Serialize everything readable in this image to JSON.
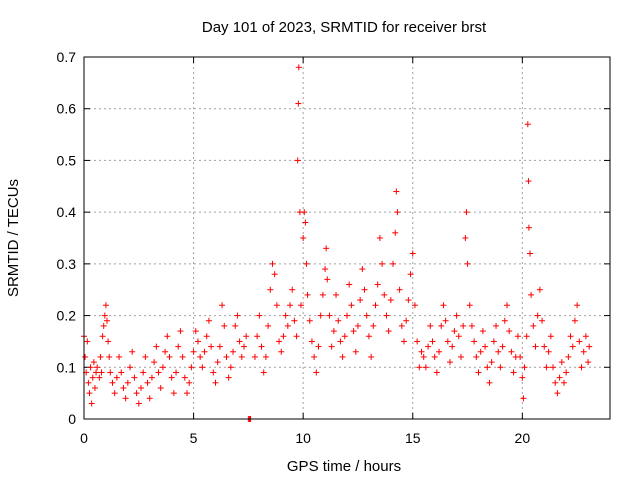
{
  "chart_data": {
    "type": "scatter",
    "title": "Day 101 of 2023, SRMTID for receiver brst",
    "xlabel": "GPS time / hours",
    "ylabel": "SRMTID / TECUs",
    "xlim": [
      0,
      24
    ],
    "ylim": [
      0,
      0.7
    ],
    "x_ticks": [
      0,
      5,
      10,
      15,
      20
    ],
    "y_ticks": [
      0,
      0.1,
      0.2,
      0.3,
      0.4,
      0.5,
      0.6,
      0.7
    ],
    "x_tick_labels": [
      "0",
      "5",
      "10",
      "15",
      "20"
    ],
    "y_tick_labels": [
      "0",
      "0.1",
      "0.2",
      "0.3",
      "0.4",
      "0.5",
      "0.6",
      "0.7"
    ],
    "grid": true,
    "marker": "+",
    "series_color": "#ff0000",
    "series": [
      {
        "name": "SRMTID",
        "points": [
          [
            0.0,
            0.16
          ],
          [
            0.05,
            0.12
          ],
          [
            0.1,
            0.09
          ],
          [
            0.15,
            0.15
          ],
          [
            0.2,
            0.07
          ],
          [
            0.25,
            0.05
          ],
          [
            0.3,
            0.1
          ],
          [
            0.35,
            0.03
          ],
          [
            0.4,
            0.08
          ],
          [
            0.45,
            0.11
          ],
          [
            0.5,
            0.06
          ],
          [
            0.55,
            0.09
          ],
          [
            0.6,
            0.1
          ],
          [
            0.7,
            0.08
          ],
          [
            0.75,
            0.12
          ],
          [
            0.8,
            0.09
          ],
          [
            0.85,
            0.16
          ],
          [
            0.9,
            0.18
          ],
          [
            0.95,
            0.2
          ],
          [
            1.0,
            0.22
          ],
          [
            1.05,
            0.19
          ],
          [
            1.1,
            0.15
          ],
          [
            1.15,
            0.12
          ],
          [
            1.2,
            0.09
          ],
          [
            1.3,
            0.07
          ],
          [
            1.4,
            0.05
          ],
          [
            1.5,
            0.08
          ],
          [
            1.6,
            0.12
          ],
          [
            1.7,
            0.09
          ],
          [
            1.8,
            0.06
          ],
          [
            1.9,
            0.04
          ],
          [
            2.0,
            0.07
          ],
          [
            2.1,
            0.1
          ],
          [
            2.2,
            0.13
          ],
          [
            2.3,
            0.08
          ],
          [
            2.4,
            0.05
          ],
          [
            2.5,
            0.03
          ],
          [
            2.6,
            0.06
          ],
          [
            2.7,
            0.09
          ],
          [
            2.8,
            0.12
          ],
          [
            2.9,
            0.07
          ],
          [
            3.0,
            0.04
          ],
          [
            3.1,
            0.08
          ],
          [
            3.2,
            0.11
          ],
          [
            3.3,
            0.14
          ],
          [
            3.4,
            0.09
          ],
          [
            3.5,
            0.06
          ],
          [
            3.6,
            0.1
          ],
          [
            3.7,
            0.13
          ],
          [
            3.8,
            0.16
          ],
          [
            3.9,
            0.12
          ],
          [
            4.0,
            0.08
          ],
          [
            4.1,
            0.05
          ],
          [
            4.2,
            0.09
          ],
          [
            4.3,
            0.14
          ],
          [
            4.4,
            0.17
          ],
          [
            4.5,
            0.12
          ],
          [
            4.6,
            0.08
          ],
          [
            4.7,
            0.05
          ],
          [
            4.8,
            0.07
          ],
          [
            4.9,
            0.1
          ],
          [
            5.0,
            0.13
          ],
          [
            5.1,
            0.17
          ],
          [
            5.2,
            0.15
          ],
          [
            5.3,
            0.12
          ],
          [
            5.4,
            0.1
          ],
          [
            5.5,
            0.13
          ],
          [
            5.6,
            0.16
          ],
          [
            5.7,
            0.19
          ],
          [
            5.8,
            0.14
          ],
          [
            5.9,
            0.09
          ],
          [
            6.0,
            0.07
          ],
          [
            6.1,
            0.11
          ],
          [
            6.2,
            0.14
          ],
          [
            6.3,
            0.22
          ],
          [
            6.4,
            0.18
          ],
          [
            6.5,
            0.12
          ],
          [
            6.6,
            0.08
          ],
          [
            6.7,
            0.1
          ],
          [
            6.8,
            0.13
          ],
          [
            6.9,
            0.18
          ],
          [
            7.0,
            0.2
          ],
          [
            7.1,
            0.15
          ],
          [
            7.2,
            0.12
          ],
          [
            7.3,
            0.14
          ],
          [
            7.4,
            0.16
          ],
          [
            7.5,
            0.0
          ],
          [
            7.55,
            0.0
          ],
          [
            7.6,
            0.0
          ],
          [
            7.8,
            0.12
          ],
          [
            7.9,
            0.16
          ],
          [
            8.0,
            0.2
          ],
          [
            8.1,
            0.14
          ],
          [
            8.2,
            0.09
          ],
          [
            8.3,
            0.12
          ],
          [
            8.4,
            0.18
          ],
          [
            8.5,
            0.25
          ],
          [
            8.6,
            0.3
          ],
          [
            8.7,
            0.28
          ],
          [
            8.8,
            0.22
          ],
          [
            8.9,
            0.15
          ],
          [
            9.0,
            0.13
          ],
          [
            9.1,
            0.16
          ],
          [
            9.2,
            0.2
          ],
          [
            9.3,
            0.18
          ],
          [
            9.4,
            0.22
          ],
          [
            9.5,
            0.25
          ],
          [
            9.6,
            0.19
          ],
          [
            9.7,
            0.16
          ],
          [
            9.75,
            0.5
          ],
          [
            9.78,
            0.61
          ],
          [
            9.8,
            0.68
          ],
          [
            9.85,
            0.4
          ],
          [
            9.9,
            0.22
          ],
          [
            10.0,
            0.35
          ],
          [
            10.05,
            0.4
          ],
          [
            10.1,
            0.38
          ],
          [
            10.15,
            0.3
          ],
          [
            10.2,
            0.24
          ],
          [
            10.3,
            0.19
          ],
          [
            10.4,
            0.15
          ],
          [
            10.5,
            0.12
          ],
          [
            10.6,
            0.09
          ],
          [
            10.7,
            0.14
          ],
          [
            10.8,
            0.2
          ],
          [
            10.9,
            0.24
          ],
          [
            11.0,
            0.29
          ],
          [
            11.05,
            0.33
          ],
          [
            11.1,
            0.27
          ],
          [
            11.2,
            0.2
          ],
          [
            11.3,
            0.14
          ],
          [
            11.4,
            0.17
          ],
          [
            11.5,
            0.24
          ],
          [
            11.6,
            0.19
          ],
          [
            11.7,
            0.15
          ],
          [
            11.8,
            0.12
          ],
          [
            11.9,
            0.16
          ],
          [
            12.0,
            0.2
          ],
          [
            12.1,
            0.26
          ],
          [
            12.2,
            0.22
          ],
          [
            12.3,
            0.17
          ],
          [
            12.4,
            0.13
          ],
          [
            12.5,
            0.18
          ],
          [
            12.6,
            0.23
          ],
          [
            12.7,
            0.29
          ],
          [
            12.8,
            0.25
          ],
          [
            12.9,
            0.2
          ],
          [
            13.0,
            0.16
          ],
          [
            13.1,
            0.12
          ],
          [
            13.2,
            0.18
          ],
          [
            13.3,
            0.22
          ],
          [
            13.4,
            0.26
          ],
          [
            13.5,
            0.35
          ],
          [
            13.6,
            0.3
          ],
          [
            13.7,
            0.24
          ],
          [
            13.8,
            0.2
          ],
          [
            13.9,
            0.17
          ],
          [
            14.0,
            0.23
          ],
          [
            14.1,
            0.3
          ],
          [
            14.2,
            0.36
          ],
          [
            14.25,
            0.44
          ],
          [
            14.3,
            0.4
          ],
          [
            14.4,
            0.25
          ],
          [
            14.5,
            0.18
          ],
          [
            14.6,
            0.15
          ],
          [
            14.7,
            0.19
          ],
          [
            14.8,
            0.23
          ],
          [
            14.9,
            0.28
          ],
          [
            15.0,
            0.32
          ],
          [
            15.1,
            0.22
          ],
          [
            15.2,
            0.15
          ],
          [
            15.3,
            0.1
          ],
          [
            15.4,
            0.13
          ],
          [
            15.5,
            0.12
          ],
          [
            15.6,
            0.1
          ],
          [
            15.7,
            0.14
          ],
          [
            15.8,
            0.18
          ],
          [
            15.9,
            0.15
          ],
          [
            16.0,
            0.12
          ],
          [
            16.1,
            0.09
          ],
          [
            16.2,
            0.13
          ],
          [
            16.3,
            0.18
          ],
          [
            16.4,
            0.22
          ],
          [
            16.5,
            0.19
          ],
          [
            16.6,
            0.15
          ],
          [
            16.7,
            0.11
          ],
          [
            16.8,
            0.14
          ],
          [
            16.9,
            0.17
          ],
          [
            17.0,
            0.2
          ],
          [
            17.1,
            0.16
          ],
          [
            17.2,
            0.12
          ],
          [
            17.3,
            0.18
          ],
          [
            17.4,
            0.35
          ],
          [
            17.45,
            0.4
          ],
          [
            17.5,
            0.3
          ],
          [
            17.6,
            0.22
          ],
          [
            17.7,
            0.18
          ],
          [
            17.8,
            0.15
          ],
          [
            17.9,
            0.12
          ],
          [
            18.0,
            0.09
          ],
          [
            18.1,
            0.13
          ],
          [
            18.2,
            0.17
          ],
          [
            18.3,
            0.14
          ],
          [
            18.4,
            0.1
          ],
          [
            18.5,
            0.07
          ],
          [
            18.6,
            0.11
          ],
          [
            18.7,
            0.15
          ],
          [
            18.8,
            0.18
          ],
          [
            18.9,
            0.13
          ],
          [
            19.0,
            0.1
          ],
          [
            19.1,
            0.14
          ],
          [
            19.2,
            0.19
          ],
          [
            19.3,
            0.22
          ],
          [
            19.4,
            0.17
          ],
          [
            19.5,
            0.13
          ],
          [
            19.6,
            0.09
          ],
          [
            19.7,
            0.12
          ],
          [
            19.8,
            0.16
          ],
          [
            19.9,
            0.12
          ],
          [
            20.0,
            0.08
          ],
          [
            20.05,
            0.04
          ],
          [
            20.1,
            0.1
          ],
          [
            20.2,
            0.16
          ],
          [
            20.25,
            0.57
          ],
          [
            20.28,
            0.46
          ],
          [
            20.3,
            0.37
          ],
          [
            20.35,
            0.32
          ],
          [
            20.4,
            0.24
          ],
          [
            20.5,
            0.18
          ],
          [
            20.6,
            0.14
          ],
          [
            20.7,
            0.2
          ],
          [
            20.8,
            0.25
          ],
          [
            20.9,
            0.19
          ],
          [
            21.0,
            0.14
          ],
          [
            21.1,
            0.1
          ],
          [
            21.2,
            0.13
          ],
          [
            21.3,
            0.16
          ],
          [
            21.4,
            0.1
          ],
          [
            21.5,
            0.07
          ],
          [
            21.6,
            0.05
          ],
          [
            21.7,
            0.08
          ],
          [
            21.8,
            0.11
          ],
          [
            21.9,
            0.07
          ],
          [
            22.0,
            0.09
          ],
          [
            22.1,
            0.12
          ],
          [
            22.2,
            0.16
          ],
          [
            22.3,
            0.14
          ],
          [
            22.4,
            0.19
          ],
          [
            22.5,
            0.22
          ],
          [
            22.6,
            0.15
          ],
          [
            22.7,
            0.1
          ],
          [
            22.8,
            0.13
          ],
          [
            22.9,
            0.16
          ],
          [
            23.0,
            0.11
          ],
          [
            23.05,
            0.14
          ]
        ]
      }
    ]
  }
}
